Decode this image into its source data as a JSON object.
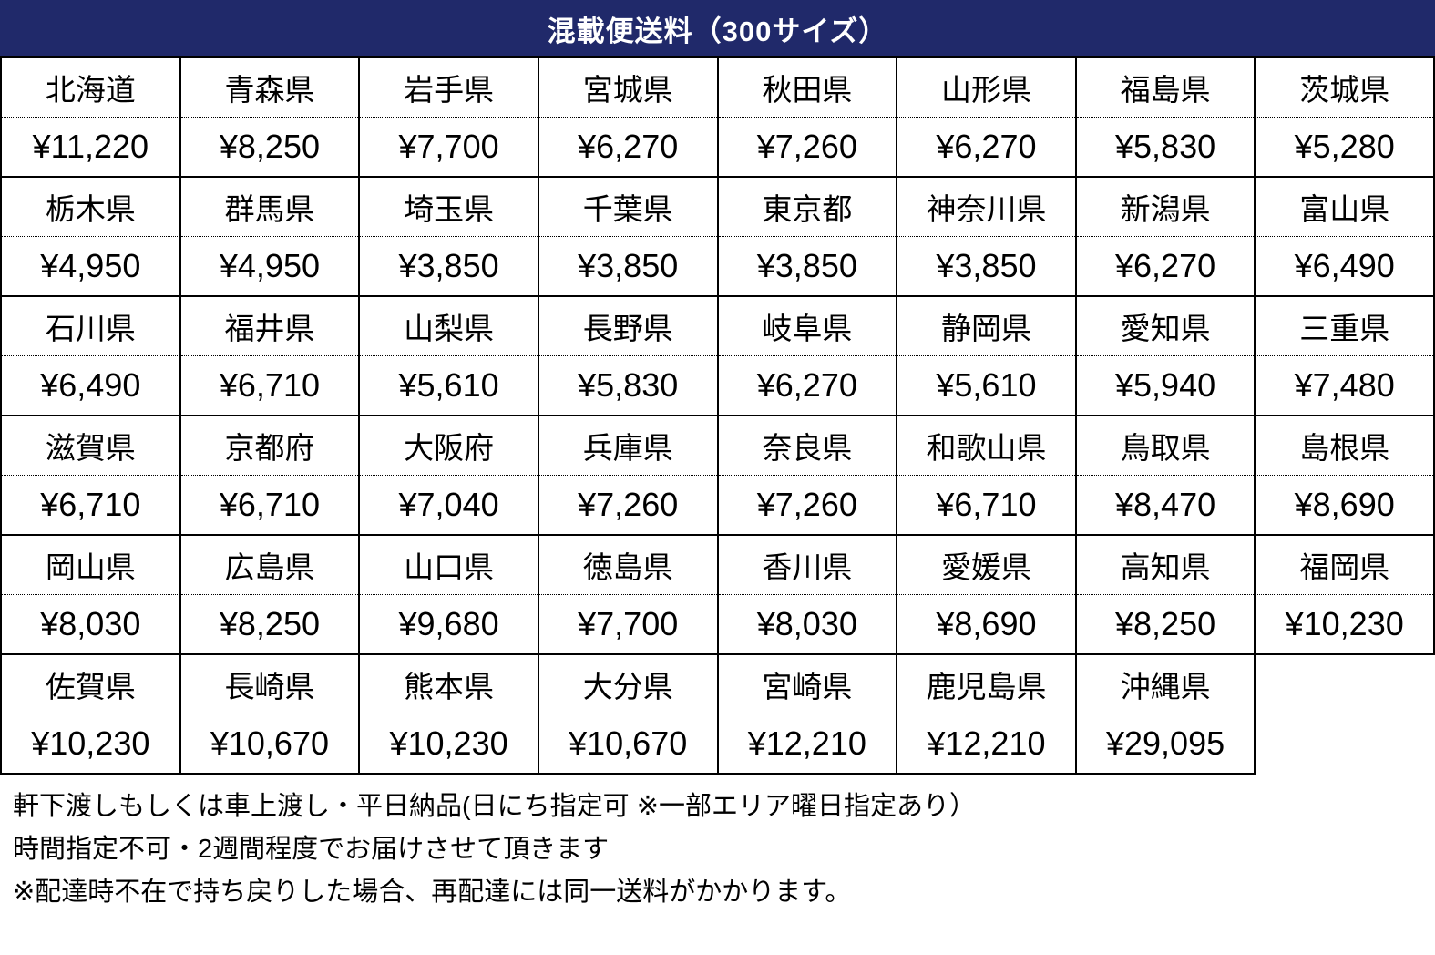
{
  "title": "混載便送料（300サイズ）",
  "colors": {
    "header_bg": "#20296A",
    "header_text": "#FFFFFF",
    "shaded_row_bg": "#DEEAF6",
    "row_bg": "#FFFFFF",
    "border": "#000000"
  },
  "table": {
    "columns": 8,
    "blocks": [
      {
        "shaded": false,
        "cells": [
          {
            "name": "北海道",
            "price": "¥11,220"
          },
          {
            "name": "青森県",
            "price": "¥8,250"
          },
          {
            "name": "岩手県",
            "price": "¥7,700"
          },
          {
            "name": "宮城県",
            "price": "¥6,270"
          },
          {
            "name": "秋田県",
            "price": "¥7,260"
          },
          {
            "name": "山形県",
            "price": "¥6,270"
          },
          {
            "name": "福島県",
            "price": "¥5,830"
          },
          {
            "name": "茨城県",
            "price": "¥5,280"
          }
        ]
      },
      {
        "shaded": true,
        "cells": [
          {
            "name": "栃木県",
            "price": "¥4,950"
          },
          {
            "name": "群馬県",
            "price": "¥4,950"
          },
          {
            "name": "埼玉県",
            "price": "¥3,850"
          },
          {
            "name": "千葉県",
            "price": "¥3,850"
          },
          {
            "name": "東京都",
            "price": "¥3,850"
          },
          {
            "name": "神奈川県",
            "price": "¥3,850"
          },
          {
            "name": "新潟県",
            "price": "¥6,270"
          },
          {
            "name": "富山県",
            "price": "¥6,490"
          }
        ]
      },
      {
        "shaded": false,
        "cells": [
          {
            "name": "石川県",
            "price": "¥6,490"
          },
          {
            "name": "福井県",
            "price": "¥6,710"
          },
          {
            "name": "山梨県",
            "price": "¥5,610"
          },
          {
            "name": "長野県",
            "price": "¥5,830"
          },
          {
            "name": "岐阜県",
            "price": "¥6,270"
          },
          {
            "name": "静岡県",
            "price": "¥5,610"
          },
          {
            "name": "愛知県",
            "price": "¥5,940"
          },
          {
            "name": "三重県",
            "price": "¥7,480"
          }
        ]
      },
      {
        "shaded": true,
        "cells": [
          {
            "name": "滋賀県",
            "price": "¥6,710"
          },
          {
            "name": "京都府",
            "price": "¥6,710"
          },
          {
            "name": "大阪府",
            "price": "¥7,040"
          },
          {
            "name": "兵庫県",
            "price": "¥7,260"
          },
          {
            "name": "奈良県",
            "price": "¥7,260"
          },
          {
            "name": "和歌山県",
            "price": "¥6,710"
          },
          {
            "name": "鳥取県",
            "price": "¥8,470"
          },
          {
            "name": "島根県",
            "price": "¥8,690"
          }
        ]
      },
      {
        "shaded": false,
        "cells": [
          {
            "name": "岡山県",
            "price": "¥8,030"
          },
          {
            "name": "広島県",
            "price": "¥8,250"
          },
          {
            "name": "山口県",
            "price": "¥9,680"
          },
          {
            "name": "徳島県",
            "price": "¥7,700"
          },
          {
            "name": "香川県",
            "price": "¥8,030"
          },
          {
            "name": "愛媛県",
            "price": "¥8,690"
          },
          {
            "name": "高知県",
            "price": "¥8,250"
          },
          {
            "name": "福岡県",
            "price": "¥10,230"
          }
        ]
      },
      {
        "shaded": true,
        "cells": [
          {
            "name": "佐賀県",
            "price": "¥10,230"
          },
          {
            "name": "長崎県",
            "price": "¥10,670"
          },
          {
            "name": "熊本県",
            "price": "¥10,230"
          },
          {
            "name": "大分県",
            "price": "¥10,670"
          },
          {
            "name": "宮崎県",
            "price": "¥12,210"
          },
          {
            "name": "鹿児島県",
            "price": "¥12,210"
          },
          {
            "name": "沖縄県",
            "price": "¥29,095"
          },
          null
        ]
      }
    ]
  },
  "notes": [
    "軒下渡しもしくは車上渡し・平日納品(日にち指定可 ※一部エリア曜日指定あり）",
    "時間指定不可・2週間程度でお届けさせて頂きます",
    "※配達時不在で持ち戻りした場合、再配達には同一送料がかかります。"
  ]
}
